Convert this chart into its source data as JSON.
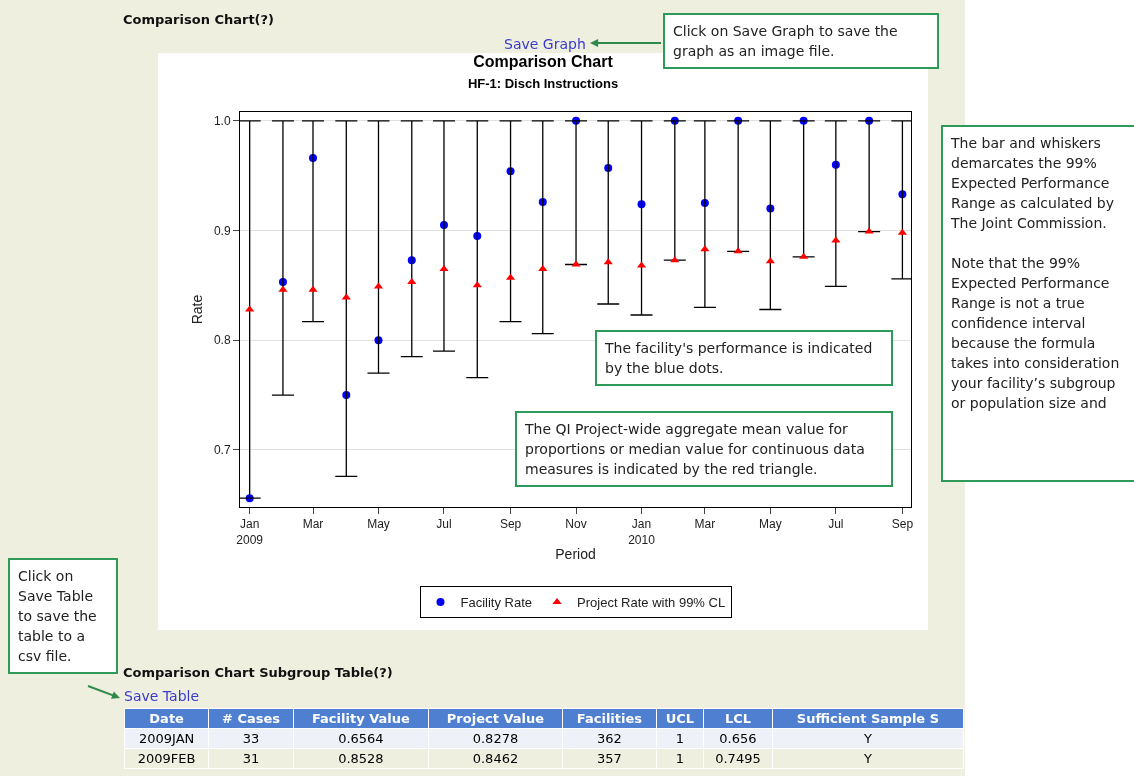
{
  "chart_data": {
    "type": "scatter",
    "title": "Comparison Chart",
    "subtitle": "HF-1: Disch Instructions",
    "xlabel": "Period",
    "ylabel": "Rate",
    "x": [
      "2009-01",
      "2009-02",
      "2009-03",
      "2009-04",
      "2009-05",
      "2009-06",
      "2009-07",
      "2009-08",
      "2009-09",
      "2009-10",
      "2009-11",
      "2009-12",
      "2010-01",
      "2010-02",
      "2010-03",
      "2010-04",
      "2010-05",
      "2010-06",
      "2010-07",
      "2010-08",
      "2010-09"
    ],
    "series": [
      {
        "name": "Facility Rate",
        "color": "#0000ff",
        "marker": "circle",
        "values": [
          0.656,
          0.853,
          0.966,
          0.75,
          0.8,
          0.873,
          0.905,
          0.895,
          0.954,
          0.926,
          1.0,
          0.957,
          0.924,
          1.0,
          0.925,
          1.0,
          0.92,
          1.0,
          0.96,
          1.0,
          0.933
        ]
      },
      {
        "name": "Project Rate with 99% CL",
        "color": "#ff0000",
        "marker": "triangle",
        "values": [
          0.828,
          0.846,
          0.846,
          0.839,
          0.849,
          0.853,
          0.865,
          0.85,
          0.857,
          0.865,
          0.869,
          0.871,
          0.868,
          0.873,
          0.883,
          0.881,
          0.872,
          0.876,
          0.891,
          0.899,
          0.898
        ],
        "errors": [
          [
            0.656,
            1
          ],
          [
            0.75,
            1
          ],
          [
            0.817,
            1
          ],
          [
            0.676,
            1
          ],
          [
            0.77,
            1
          ],
          [
            0.785,
            1
          ],
          [
            0.79,
            1
          ],
          [
            0.766,
            1
          ],
          [
            0.817,
            1
          ],
          [
            0.806,
            1
          ],
          [
            0.869,
            1
          ],
          [
            0.833,
            1
          ],
          [
            0.823,
            1
          ],
          [
            0.873,
            1
          ],
          [
            0.83,
            1
          ],
          [
            0.881,
            1
          ],
          [
            0.828,
            1
          ],
          [
            0.876,
            1
          ],
          [
            0.849,
            1
          ],
          [
            0.899,
            1
          ],
          [
            0.856,
            1
          ]
        ]
      }
    ],
    "xlim": [
      "2008-12-23",
      "2010-09-09"
    ],
    "xticks": [
      {
        "value": "2009-01",
        "label": "Jan\n2009"
      },
      {
        "value": "2009-03",
        "label": "Mar"
      },
      {
        "value": "2009-05",
        "label": "May"
      },
      {
        "value": "2009-07",
        "label": "Jul"
      },
      {
        "value": "2009-09",
        "label": "Sep"
      },
      {
        "value": "2009-11",
        "label": "Nov"
      },
      {
        "value": "2010-01",
        "label": "Jan\n2010"
      },
      {
        "value": "2010-03",
        "label": "Mar"
      },
      {
        "value": "2010-05",
        "label": "May"
      },
      {
        "value": "2010-07",
        "label": "Jul"
      },
      {
        "value": "2010-09",
        "label": "Sep"
      }
    ],
    "ylim": [
      0.648,
      1.008
    ],
    "yticks": [
      {
        "value": 0.7,
        "label": "0.7"
      },
      {
        "value": 0.8,
        "label": "0.8"
      },
      {
        "value": 0.9,
        "label": "0.9"
      },
      {
        "value": 1.0,
        "label": "1.0"
      }
    ],
    "grid": "y",
    "legend": "bottom",
    "annotations": [
      "Comparison Chart(?)",
      "Save Graph",
      "Click on Save Graph to save the graph as an image file.",
      "The facility's performance is indicated by the blue dots.",
      "The QI Project-wide aggregate mean value for proportions or median value for continuous data measures is indicated by the red triangle.",
      "The bar and whiskers demarcates the 99% Expected Performance Range as calculated by The Joint Commission.\n\nNote that the 99% Expected Performance Range is not a true confidence interval because the formula takes into consideration your facility’s subgroup or population size and",
      "Click on Save Table to save the table to a csv file.",
      "Comparison Chart Subgroup Table(?)",
      "Save Table",
      "Date\t# Cases\tFacility Value\tProject Value\tFacilities\tUCL\tLCL\tSufficient Sample S",
      "2009JAN\t33\t0.6564\t0.8278\t362\t1\t0.656\tY",
      "2009FEB\t31\t0.8528\t0.8462\t357\t1\t0.7495\tY"
    ]
  }
}
